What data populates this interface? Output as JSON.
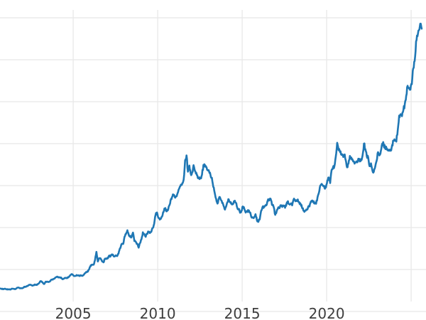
{
  "colors": {
    "line": "#1f77b4",
    "grid": "#e8e8e8",
    "tick_labels": "#3d3d3d",
    "background": "#ffffff"
  },
  "chart_data": {
    "type": "line",
    "title": "",
    "xlabel": "",
    "ylabel": "",
    "legend": false,
    "grid": true,
    "y_tick_labels_visible": false,
    "x_tick_labels": [
      "2005",
      "2010",
      "2015",
      "2020"
    ],
    "x_tick_years": [
      2005,
      2010,
      2015,
      2020
    ],
    "x_gridline_years": [
      2005,
      2010,
      2015,
      2020,
      2025
    ],
    "x_range": [
      2000.67,
      2025.88
    ],
    "y_grid_values": [
      0,
      500,
      1000,
      1500,
      2000,
      2500,
      3000,
      3500
    ],
    "ylim": [
      0,
      3590
    ],
    "series": [
      {
        "name": "series1",
        "color": "#1f77b4",
        "interval": "monthly",
        "start_year": 2000,
        "start_month": 9,
        "values": [
          274,
          270,
          266,
          272,
          266,
          262,
          263,
          261,
          272,
          270,
          267,
          272,
          284,
          283,
          276,
          276,
          281,
          295,
          294,
          302,
          314,
          318,
          313,
          310,
          319,
          317,
          319,
          333,
          357,
          359,
          340,
          328,
          355,
          356,
          351,
          360,
          379,
          379,
          389,
          407,
          414,
          405,
          406,
          403,
          384,
          392,
          398,
          400,
          405,
          420,
          439,
          442,
          424,
          423,
          434,
          429,
          422,
          431,
          424,
          437,
          456,
          470,
          476,
          510,
          550,
          555,
          557,
          611,
          710,
          596,
          634,
          632,
          598,
          586,
          627,
          630,
          631,
          665,
          655,
          680,
          667,
          656,
          665,
          666,
          713,
          755,
          806,
          804,
          890,
          922,
          968,
          910,
          889,
          889,
          940,
          839,
          830,
          807,
          760,
          816,
          858,
          943,
          924,
          890,
          928,
          946,
          934,
          949,
          996,
          1043,
          1150,
          1180,
          1118,
          1095,
          1113,
          1149,
          1205,
          1232,
          1193,
          1216,
          1271,
          1342,
          1370,
          1391,
          1356,
          1373,
          1424,
          1474,
          1511,
          1529,
          1573,
          1800,
          1860,
          1666,
          1739,
          1640,
          1656,
          1743,
          1674,
          1650,
          1591,
          1598,
          1590,
          1630,
          1745,
          1747,
          1722,
          1685,
          1671,
          1628,
          1593,
          1485,
          1414,
          1343,
          1286,
          1347,
          1348,
          1316,
          1276,
          1221,
          1244,
          1300,
          1336,
          1299,
          1288,
          1279,
          1311,
          1296,
          1237,
          1222,
          1176,
          1200,
          1251,
          1227,
          1179,
          1197,
          1199,
          1181,
          1128,
          1117,
          1125,
          1159,
          1086,
          1068,
          1097,
          1200,
          1246,
          1242,
          1260,
          1276,
          1337,
          1340,
          1327,
          1266,
          1238,
          1152,
          1192,
          1234,
          1231,
          1266,
          1246,
          1260,
          1236,
          1283,
          1314,
          1280,
          1282,
          1264,
          1331,
          1330,
          1325,
          1335,
          1303,
          1282,
          1238,
          1202,
          1198,
          1215,
          1221,
          1250,
          1292,
          1320,
          1301,
          1286,
          1284,
          1359,
          1413,
          1500,
          1520,
          1495,
          1471,
          1479,
          1561,
          1597,
          1530,
          1683,
          1716,
          1732,
          1843,
          2010,
          1922,
          1900,
          1866,
          1858,
          1867,
          1808,
          1718,
          1762,
          1853,
          1835,
          1807,
          1784,
          1776,
          1777,
          1820,
          1787,
          1817,
          1856,
          2000,
          1934,
          1850,
          1836,
          1731,
          1765,
          1681,
          1665,
          1726,
          1797,
          1898,
          1860,
          1913,
          2000,
          1992,
          1943,
          1951,
          1919,
          1916,
          1915,
          1984,
          2034,
          2034,
          2025,
          2160,
          2334,
          2351,
          2327,
          2398,
          2470,
          2568,
          2690,
          2657,
          2644,
          2708,
          2897,
          2983,
          3218,
          3280,
          3353,
          3430,
          3370
        ]
      }
    ]
  }
}
